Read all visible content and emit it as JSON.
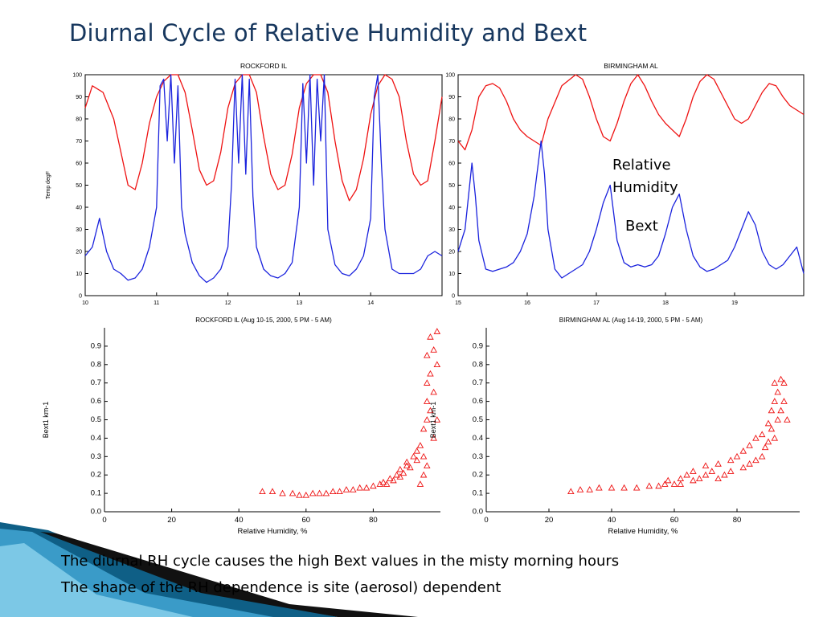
{
  "slide": {
    "title": "Diurnal Cycle of Relative Humidity and Bext",
    "annotations": {
      "rh": "Relative Humidity",
      "bext": "Bext"
    },
    "captions": [
      "The diurnal RH cycle causes the high Bext values in the misty morning hours",
      "The shape of the RH dependence is site (aerosol) dependent"
    ]
  },
  "chart_data": [
    {
      "id": "rockford-ts",
      "type": "line",
      "title": "ROCKFORD IL",
      "xlabel": "ROCKFORD IL (Aug 10-15, 2000, 5 PM - 5 AM)",
      "ylabel": "Temp degF",
      "xlim": [
        10,
        15
      ],
      "ylim": [
        0,
        100
      ],
      "xticks": [
        10,
        11,
        12,
        13,
        14
      ],
      "yticks": [
        0,
        10,
        20,
        30,
        40,
        50,
        60,
        70,
        80,
        90,
        100
      ],
      "series": [
        {
          "color": "#ee1111",
          "x": [
            10.0,
            10.1,
            10.25,
            10.4,
            10.5,
            10.6,
            10.7,
            10.8,
            10.9,
            11.0,
            11.1,
            11.2,
            11.3,
            11.4,
            11.5,
            11.6,
            11.7,
            11.8,
            11.9,
            12.0,
            12.1,
            12.2,
            12.3,
            12.4,
            12.5,
            12.6,
            12.7,
            12.8,
            12.9,
            13.0,
            13.1,
            13.2,
            13.3,
            13.4,
            13.5,
            13.6,
            13.7,
            13.8,
            13.9,
            14.0,
            14.1,
            14.2,
            14.3,
            14.4,
            14.5,
            14.6,
            14.7,
            14.8,
            14.9,
            15.0
          ],
          "y": [
            85,
            95,
            92,
            80,
            65,
            50,
            48,
            60,
            78,
            90,
            97,
            100,
            100,
            92,
            75,
            57,
            50,
            52,
            65,
            85,
            96,
            100,
            100,
            92,
            72,
            55,
            48,
            50,
            64,
            85,
            96,
            100,
            100,
            92,
            70,
            52,
            43,
            48,
            62,
            82,
            95,
            100,
            98,
            90,
            70,
            55,
            50,
            52,
            70,
            90
          ]
        },
        {
          "color": "#1a22dd",
          "x": [
            10.0,
            10.1,
            10.2,
            10.3,
            10.4,
            10.5,
            10.6,
            10.7,
            10.8,
            10.9,
            11.0,
            11.05,
            11.1,
            11.15,
            11.2,
            11.25,
            11.3,
            11.35,
            11.4,
            11.5,
            11.6,
            11.7,
            11.8,
            11.9,
            12.0,
            12.05,
            12.1,
            12.15,
            12.2,
            12.25,
            12.3,
            12.35,
            12.4,
            12.5,
            12.6,
            12.7,
            12.8,
            12.9,
            13.0,
            13.05,
            13.1,
            13.15,
            13.2,
            13.25,
            13.3,
            13.35,
            13.4,
            13.5,
            13.6,
            13.7,
            13.8,
            13.9,
            14.0,
            14.05,
            14.1,
            14.15,
            14.2,
            14.3,
            14.4,
            14.5,
            14.6,
            14.7,
            14.8,
            14.9,
            15.0
          ],
          "y": [
            18,
            22,
            35,
            20,
            12,
            10,
            7,
            8,
            12,
            22,
            40,
            95,
            98,
            70,
            100,
            60,
            95,
            40,
            28,
            15,
            9,
            6,
            8,
            12,
            22,
            50,
            98,
            60,
            100,
            55,
            98,
            45,
            22,
            12,
            9,
            8,
            10,
            15,
            40,
            96,
            60,
            100,
            50,
            98,
            70,
            100,
            30,
            14,
            10,
            9,
            12,
            18,
            35,
            90,
            100,
            60,
            30,
            12,
            10,
            10,
            10,
            12,
            18,
            20,
            18
          ]
        }
      ]
    },
    {
      "id": "birmingham-ts",
      "type": "line",
      "title": "BIRMINGHAM AL",
      "xlabel": "BIRMINGHAM AL (Aug 14-19, 2000, 5 PM - 5 AM)",
      "ylabel": "",
      "xlim": [
        15,
        20
      ],
      "ylim": [
        0,
        100
      ],
      "xticks": [
        15,
        16,
        17,
        18,
        19
      ],
      "yticks": [
        0,
        10,
        20,
        30,
        40,
        50,
        60,
        70,
        80,
        90,
        100
      ],
      "series": [
        {
          "color": "#ee1111",
          "x": [
            15.0,
            15.1,
            15.2,
            15.3,
            15.4,
            15.5,
            15.6,
            15.7,
            15.8,
            15.9,
            16.0,
            16.1,
            16.2,
            16.3,
            16.5,
            16.7,
            16.8,
            16.9,
            17.0,
            17.1,
            17.2,
            17.3,
            17.4,
            17.5,
            17.6,
            17.7,
            17.8,
            17.9,
            18.0,
            18.1,
            18.2,
            18.3,
            18.4,
            18.5,
            18.6,
            18.7,
            18.8,
            18.9,
            19.0,
            19.1,
            19.2,
            19.3,
            19.4,
            19.5,
            19.6,
            19.7,
            19.8,
            19.9,
            20.0
          ],
          "y": [
            70,
            66,
            75,
            90,
            95,
            96,
            94,
            88,
            80,
            75,
            72,
            70,
            68,
            80,
            95,
            100,
            98,
            90,
            80,
            72,
            70,
            78,
            88,
            96,
            100,
            95,
            88,
            82,
            78,
            75,
            72,
            80,
            90,
            97,
            100,
            98,
            92,
            86,
            80,
            78,
            80,
            86,
            92,
            96,
            95,
            90,
            86,
            84,
            82
          ]
        },
        {
          "color": "#1a22dd",
          "x": [
            15.0,
            15.1,
            15.2,
            15.25,
            15.3,
            15.4,
            15.5,
            15.6,
            15.7,
            15.8,
            15.9,
            16.0,
            16.1,
            16.2,
            16.25,
            16.3,
            16.4,
            16.5,
            16.6,
            16.7,
            16.8,
            16.9,
            17.0,
            17.1,
            17.2,
            17.3,
            17.4,
            17.5,
            17.6,
            17.7,
            17.8,
            17.9,
            18.0,
            18.1,
            18.2,
            18.3,
            18.4,
            18.5,
            18.6,
            18.7,
            18.8,
            18.9,
            19.0,
            19.1,
            19.2,
            19.3,
            19.4,
            19.5,
            19.6,
            19.7,
            19.8,
            19.9,
            20.0
          ],
          "y": [
            20,
            30,
            60,
            45,
            25,
            12,
            11,
            12,
            13,
            15,
            20,
            28,
            45,
            70,
            55,
            30,
            12,
            8,
            10,
            12,
            14,
            20,
            30,
            42,
            50,
            25,
            15,
            13,
            14,
            13,
            14,
            18,
            28,
            40,
            46,
            30,
            18,
            13,
            11,
            12,
            14,
            16,
            22,
            30,
            38,
            32,
            20,
            14,
            12,
            14,
            18,
            22,
            10
          ]
        }
      ]
    },
    {
      "id": "rockford-scatter",
      "type": "scatter",
      "xlabel": "Relative Humidity, %",
      "ylabel": "Bext1 km-1",
      "xlim": [
        0,
        100
      ],
      "ylim": [
        0,
        1.0
      ],
      "xticks": [
        0,
        20,
        40,
        60,
        80
      ],
      "yticks": [
        0.0,
        0.1,
        0.2,
        0.3,
        0.4,
        0.5,
        0.6,
        0.7,
        0.8,
        0.9
      ],
      "series": [
        {
          "color": "#ee1111",
          "x": [
            47,
            50,
            53,
            56,
            58,
            60,
            62,
            64,
            66,
            68,
            70,
            72,
            74,
            76,
            78,
            80,
            82,
            83,
            84,
            85,
            86,
            87,
            88,
            88,
            89,
            90,
            90,
            91,
            92,
            93,
            93,
            94,
            95,
            95,
            96,
            96,
            96,
            96,
            97,
            97,
            97,
            98,
            98,
            98,
            99,
            99,
            99,
            96,
            95,
            94
          ],
          "y": [
            0.11,
            0.11,
            0.1,
            0.1,
            0.09,
            0.09,
            0.1,
            0.1,
            0.1,
            0.11,
            0.11,
            0.12,
            0.12,
            0.13,
            0.13,
            0.14,
            0.15,
            0.16,
            0.15,
            0.18,
            0.17,
            0.2,
            0.19,
            0.23,
            0.21,
            0.25,
            0.27,
            0.24,
            0.3,
            0.28,
            0.33,
            0.36,
            0.3,
            0.45,
            0.5,
            0.6,
            0.7,
            0.85,
            0.55,
            0.75,
            0.95,
            0.4,
            0.65,
            0.88,
            0.5,
            0.8,
            0.98,
            0.25,
            0.2,
            0.15
          ]
        }
      ]
    },
    {
      "id": "birmingham-scatter",
      "type": "scatter",
      "xlabel": "Relative Humidity, %",
      "ylabel": "Bext1 km-1",
      "xlim": [
        0,
        100
      ],
      "ylim": [
        0,
        1.0
      ],
      "xticks": [
        0,
        20,
        40,
        60,
        80
      ],
      "yticks": [
        0.0,
        0.1,
        0.2,
        0.3,
        0.4,
        0.5,
        0.6,
        0.7,
        0.8,
        0.9
      ],
      "series": [
        {
          "color": "#ee1111",
          "x": [
            27,
            30,
            33,
            36,
            40,
            44,
            48,
            52,
            55,
            57,
            58,
            60,
            62,
            62,
            64,
            66,
            66,
            68,
            70,
            70,
            72,
            74,
            74,
            76,
            78,
            78,
            80,
            82,
            82,
            84,
            84,
            86,
            86,
            88,
            88,
            89,
            90,
            90,
            91,
            91,
            92,
            92,
            92,
            93,
            93,
            94,
            94,
            95,
            95,
            96
          ],
          "y": [
            0.11,
            0.12,
            0.12,
            0.13,
            0.13,
            0.13,
            0.13,
            0.14,
            0.14,
            0.15,
            0.17,
            0.15,
            0.18,
            0.15,
            0.2,
            0.17,
            0.22,
            0.18,
            0.2,
            0.25,
            0.22,
            0.18,
            0.26,
            0.2,
            0.28,
            0.22,
            0.3,
            0.24,
            0.33,
            0.26,
            0.36,
            0.28,
            0.4,
            0.3,
            0.42,
            0.35,
            0.38,
            0.48,
            0.45,
            0.55,
            0.4,
            0.6,
            0.7,
            0.5,
            0.65,
            0.55,
            0.72,
            0.6,
            0.7,
            0.5
          ]
        }
      ]
    }
  ]
}
